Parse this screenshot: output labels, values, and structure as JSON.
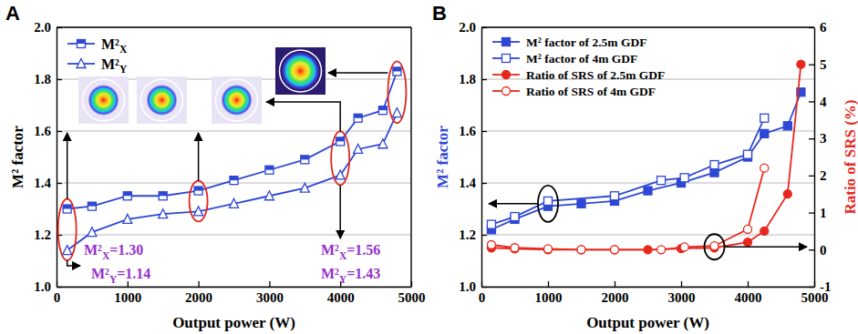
{
  "chart_data": [
    {
      "type": "line",
      "title": "A",
      "x_label": "Output power (W)",
      "y_label": "M² factor",
      "xlim": [
        0,
        5000
      ],
      "xticks": [
        0,
        1000,
        2000,
        3000,
        4000,
        5000
      ],
      "ylim": [
        1,
        2
      ],
      "yticks": [
        {
          "value": 1,
          "label": "1.0"
        },
        1.2,
        1.4,
        1.6,
        1.8,
        {
          "value": 2,
          "label": "2.0"
        }
      ],
      "grid": true,
      "legend": "upper left",
      "series": [
        {
          "name": "M²X",
          "color": "#2e47d4",
          "marker": "half-square",
          "x": [
            150,
            500,
            1000,
            1500,
            2000,
            2500,
            3000,
            3500,
            4000,
            4250,
            4600,
            4800
          ],
          "values": [
            1.3,
            1.31,
            1.35,
            1.35,
            1.37,
            1.41,
            1.45,
            1.49,
            1.56,
            1.65,
            1.68,
            1.83
          ]
        },
        {
          "name": "M²Y",
          "color": "#2e47d4",
          "marker": "open-triangle",
          "x": [
            150,
            500,
            1000,
            1500,
            2000,
            2500,
            3000,
            3500,
            4000,
            4250,
            4600,
            4800
          ],
          "values": [
            1.14,
            1.21,
            1.26,
            1.28,
            1.29,
            1.32,
            1.35,
            1.38,
            1.43,
            1.53,
            1.55,
            1.67
          ]
        }
      ],
      "annotations": [
        "M²X=1.30",
        "M²Y=1.14",
        "M²X=1.56",
        "M²Y=1.43"
      ]
    },
    {
      "type": "line",
      "title": "B",
      "x_label": "Output power (W)",
      "y_label": "M² factor",
      "y2_label": "Ratio of SRS (%)",
      "xlim": [
        0,
        5000
      ],
      "xticks": [
        0,
        1000,
        2000,
        3000,
        4000,
        5000
      ],
      "ylim": [
        1,
        2
      ],
      "yticks": [
        {
          "value": 1,
          "label": "1.0"
        },
        1.2,
        1.4,
        1.6,
        1.8,
        {
          "value": 2,
          "label": "2.0"
        }
      ],
      "y2lim": [
        -1,
        6
      ],
      "y2ticks": [
        -1,
        0,
        1,
        2,
        3,
        4,
        5,
        6
      ],
      "grid": true,
      "legend": "upper left",
      "series": [
        {
          "name": "M² factor of 2.5m GDF",
          "color": "#2e47d4",
          "marker": "square",
          "x": [
            150,
            500,
            1000,
            1500,
            2000,
            2500,
            3000,
            3500,
            4000,
            4250,
            4600,
            4800
          ],
          "values": [
            1.22,
            1.26,
            1.31,
            1.32,
            1.33,
            1.37,
            1.4,
            1.44,
            1.5,
            1.59,
            1.62,
            1.75
          ]
        },
        {
          "name": "M² factor of 4m GDF",
          "color": "#2e47d4",
          "marker": "open-square",
          "x": [
            150,
            500,
            1000,
            2000,
            2700,
            3050,
            3500,
            4000,
            4250
          ],
          "values": [
            1.24,
            1.27,
            1.33,
            1.35,
            1.41,
            1.42,
            1.47,
            1.51,
            1.65
          ]
        },
        {
          "name": "Ratio of SRS of 2.5m GDF",
          "color": "#e8281e",
          "marker": "circle",
          "axis": "y2",
          "x": [
            150,
            500,
            1000,
            1500,
            2000,
            2500,
            3000,
            3500,
            4000,
            4250,
            4600,
            4800
          ],
          "values": [
            0.05,
            0.02,
            0,
            0,
            0,
            0,
            0.03,
            0.05,
            0.2,
            0.5,
            1.5,
            5.0
          ]
        },
        {
          "name": "Ratio of SRS of 4m GDF",
          "color": "#e8281e",
          "marker": "open-circle",
          "axis": "y2",
          "x": [
            150,
            500,
            1000,
            1500,
            2000,
            2700,
            3050,
            3500,
            4000,
            4250
          ],
          "values": [
            0.13,
            0.05,
            0.02,
            0,
            0,
            0,
            0.07,
            0.1,
            0.55,
            2.2
          ]
        }
      ]
    }
  ]
}
